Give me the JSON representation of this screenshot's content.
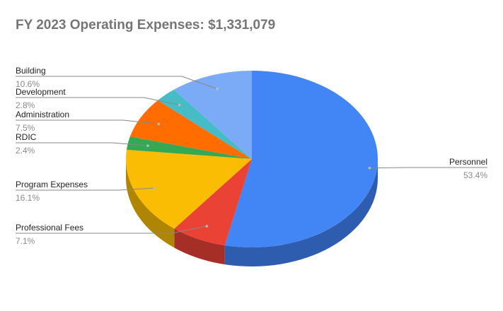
{
  "chart_data": {
    "type": "pie",
    "title": "FY 2023 Operating Expenses: $1,331,079",
    "slices": [
      {
        "label": "Personnel",
        "percent_label": "53.4%",
        "value": 53.4,
        "color": "#4285f4",
        "side_color": "#2e5db0"
      },
      {
        "label": "Professional Fees",
        "percent_label": "7.1%",
        "value": 7.1,
        "color": "#ea4335",
        "side_color": "#a52e26"
      },
      {
        "label": "Program Expenses",
        "percent_label": "16.1%",
        "value": 16.1,
        "color": "#fbbc04",
        "side_color": "#b08503"
      },
      {
        "label": "RDIC",
        "percent_label": "2.4%",
        "value": 2.4,
        "color": "#34a853",
        "side_color": "#24763a"
      },
      {
        "label": "Administration",
        "percent_label": "7.5%",
        "value": 7.5,
        "color": "#ff6d01",
        "side_color": "#b34d01"
      },
      {
        "label": "Development",
        "percent_label": "2.8%",
        "value": 2.8,
        "color": "#46bdc6",
        "side_color": "#31858b"
      },
      {
        "label": "Building",
        "percent_label": "10.6%",
        "value": 10.6,
        "color": "#7baaf7",
        "side_color": "#5677ad"
      }
    ],
    "three_d": true
  }
}
